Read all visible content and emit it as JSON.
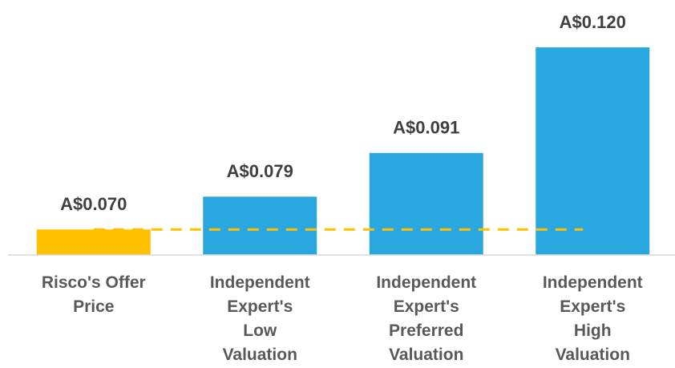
{
  "chart_data": {
    "type": "bar",
    "categories": [
      "Risco's Offer\nPrice",
      "Independent\nExpert's\nLow\nValuation",
      "Independent\nExpert's\nPreferred\nValuation",
      "Independent\nExpert's\nHigh\nValuation"
    ],
    "values": [
      0.07,
      0.079,
      0.091,
      0.12
    ],
    "value_labels": [
      "A$0.070",
      "A$0.079",
      "A$0.091",
      "A$0.120"
    ],
    "colors": [
      "#ffc000",
      "#29a8e0",
      "#29a8e0",
      "#29a8e0"
    ],
    "reference_line": {
      "value": 0.07,
      "color": "#ffc000"
    },
    "ylim": [
      0.063,
      0.133
    ]
  }
}
